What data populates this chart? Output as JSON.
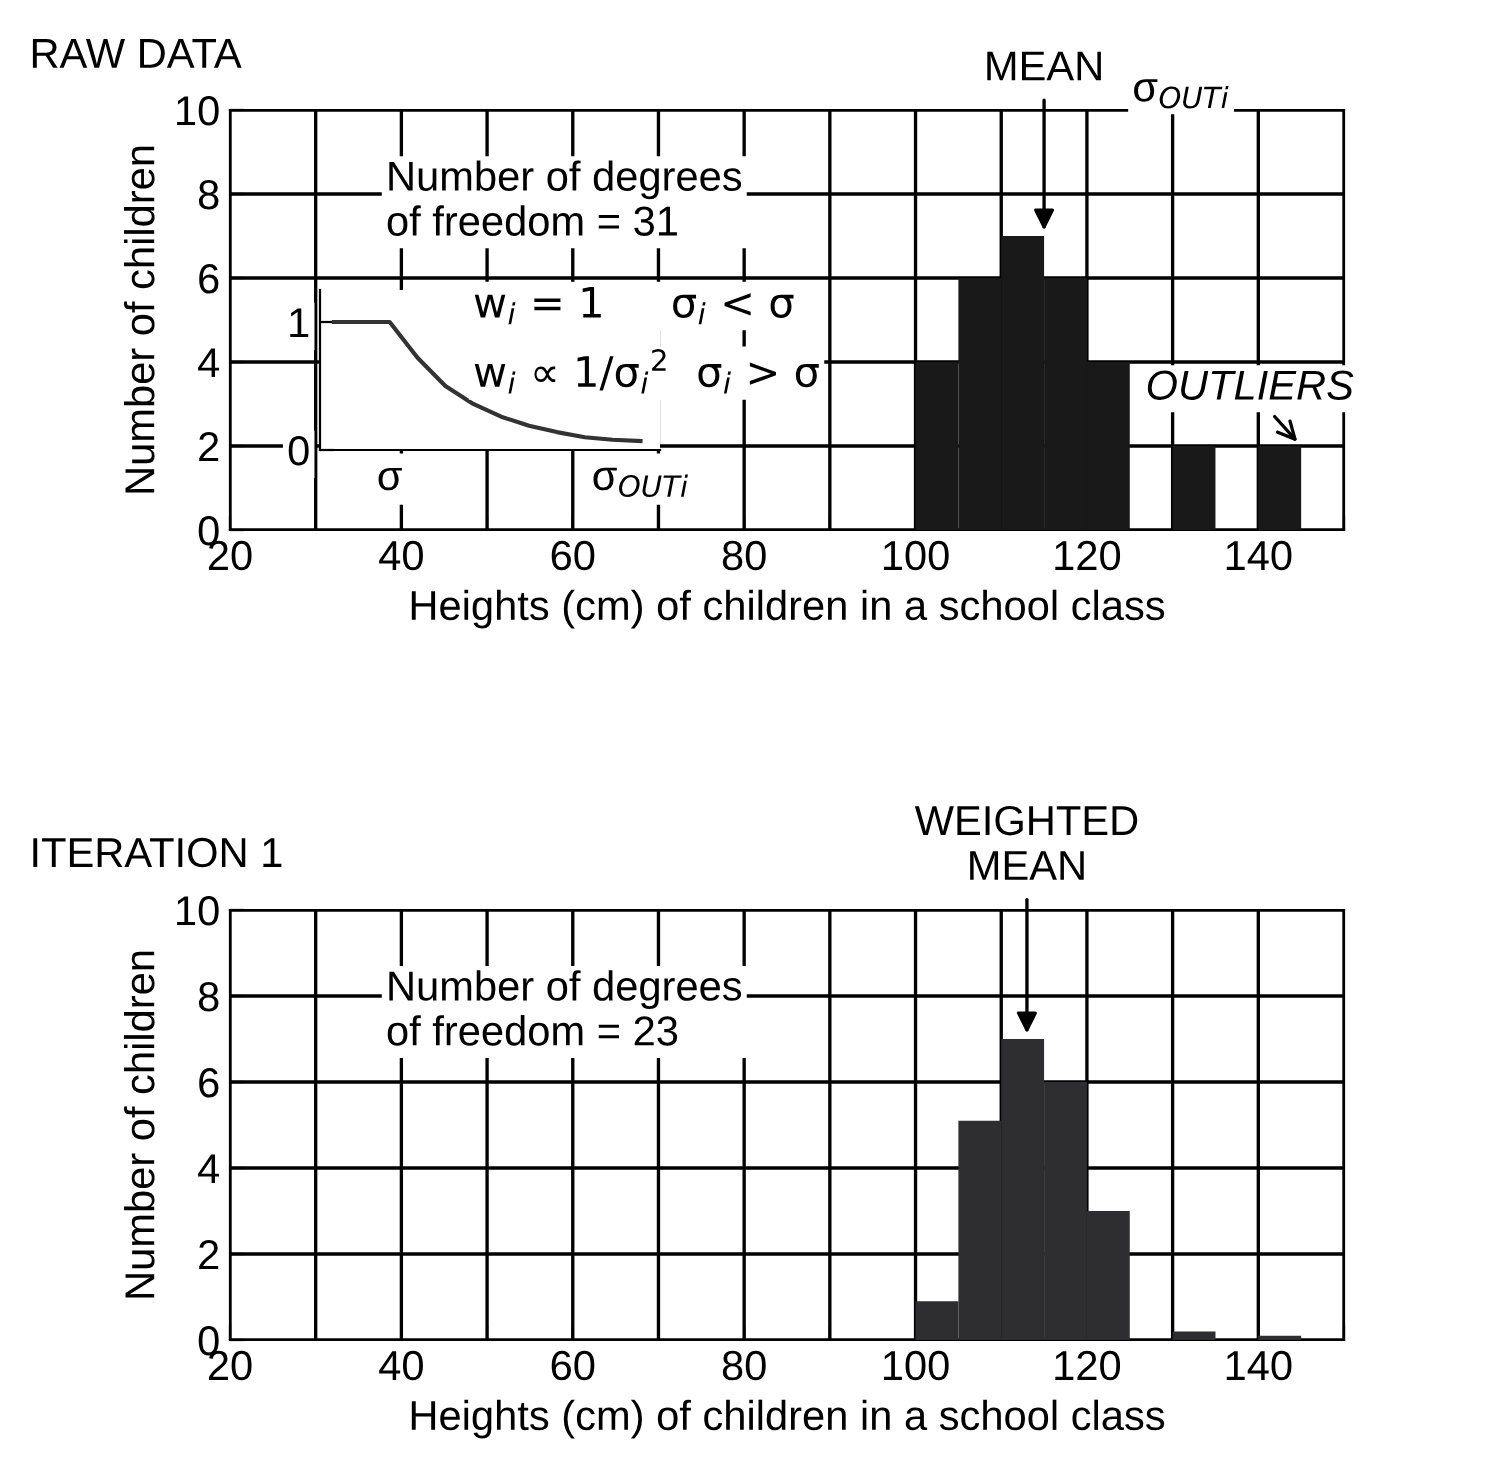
{
  "chart_data": [
    {
      "type": "histogram",
      "title": "RAW DATA",
      "xlabel": "Heights (cm) of children in a school class",
      "ylabel": "Number of children",
      "bins": [
        100,
        105,
        110,
        115,
        120,
        125,
        130,
        135,
        140,
        145,
        150
      ],
      "values": [
        4,
        6,
        7,
        6,
        4,
        0,
        2,
        0,
        2,
        0
      ],
      "color": "#1a191a",
      "xlim": [
        20,
        150
      ],
      "ylim": [
        0,
        10
      ],
      "xticks": [
        20,
        {
          "value": 30,
          "label": null
        },
        40,
        {
          "value": 50,
          "label": null
        },
        60,
        {
          "value": 70,
          "label": null
        },
        80,
        {
          "value": 90,
          "label": null
        },
        100,
        {
          "value": 110,
          "label": null
        },
        120,
        {
          "value": 130,
          "label": null
        },
        140,
        {
          "value": 150,
          "label": null
        }
      ],
      "yticks": [
        0,
        2,
        4,
        6,
        8,
        10
      ],
      "grid": true,
      "annotations": [
        "Number of degrees\nof freedom = 31",
        {
          "text": "MEAN",
          "x": 115,
          "y": 7
        },
        "σ$_{OUTi}$",
        {
          "text": "OUTLIERS",
          "x": 145,
          "y": 2
        }
      ]
    },
    {
      "type": "line",
      "categories": [
        null,
        null,
        "σ",
        null,
        null,
        null,
        null,
        null,
        null,
        null,
        null,
        "σ$_{OUTi}$"
      ],
      "values": [
        1,
        1,
        1,
        0.72,
        0.5,
        0.36,
        0.26,
        0.19,
        0.14,
        0.1,
        0.08,
        0.07
      ],
      "line_style": "solid",
      "ylim": [
        0,
        1.25
      ],
      "yticks": [
        0,
        1
      ],
      "annotations": [
        "w$_{i}$ = 1     σ$_{i}$ < σ",
        "w$_{i}$ ∝ 1/σ$_{i}$$^{2}$  σ$_{i}$ > σ"
      ]
    },
    {
      "type": "histogram",
      "title": "ITERATION 1",
      "xlabel": "Heights (cm) of children in a school class",
      "ylabel": "Number of children",
      "bins": [
        100,
        105,
        110,
        115,
        120,
        125,
        130,
        135,
        140,
        145,
        150
      ],
      "values": [
        0.9,
        5.1,
        7,
        6,
        3,
        0,
        0.2,
        0,
        0.1,
        0
      ],
      "color": "#2e2d2f",
      "xlim": [
        20,
        150
      ],
      "ylim": [
        0,
        10
      ],
      "xticks": [
        20,
        {
          "value": 30,
          "label": null
        },
        40,
        {
          "value": 50,
          "label": null
        },
        60,
        {
          "value": 70,
          "label": null
        },
        80,
        {
          "value": 90,
          "label": null
        },
        100,
        {
          "value": 110,
          "label": null
        },
        120,
        {
          "value": 130,
          "label": null
        },
        140,
        {
          "value": 150,
          "label": null
        }
      ],
      "yticks": [
        0,
        2,
        4,
        6,
        8,
        10
      ],
      "grid": true,
      "annotations": [
        "Number of degrees\nof freedom = 23",
        {
          "text": "WEIGHTED\nMEAN",
          "x": 113,
          "y": 7
        }
      ]
    }
  ]
}
